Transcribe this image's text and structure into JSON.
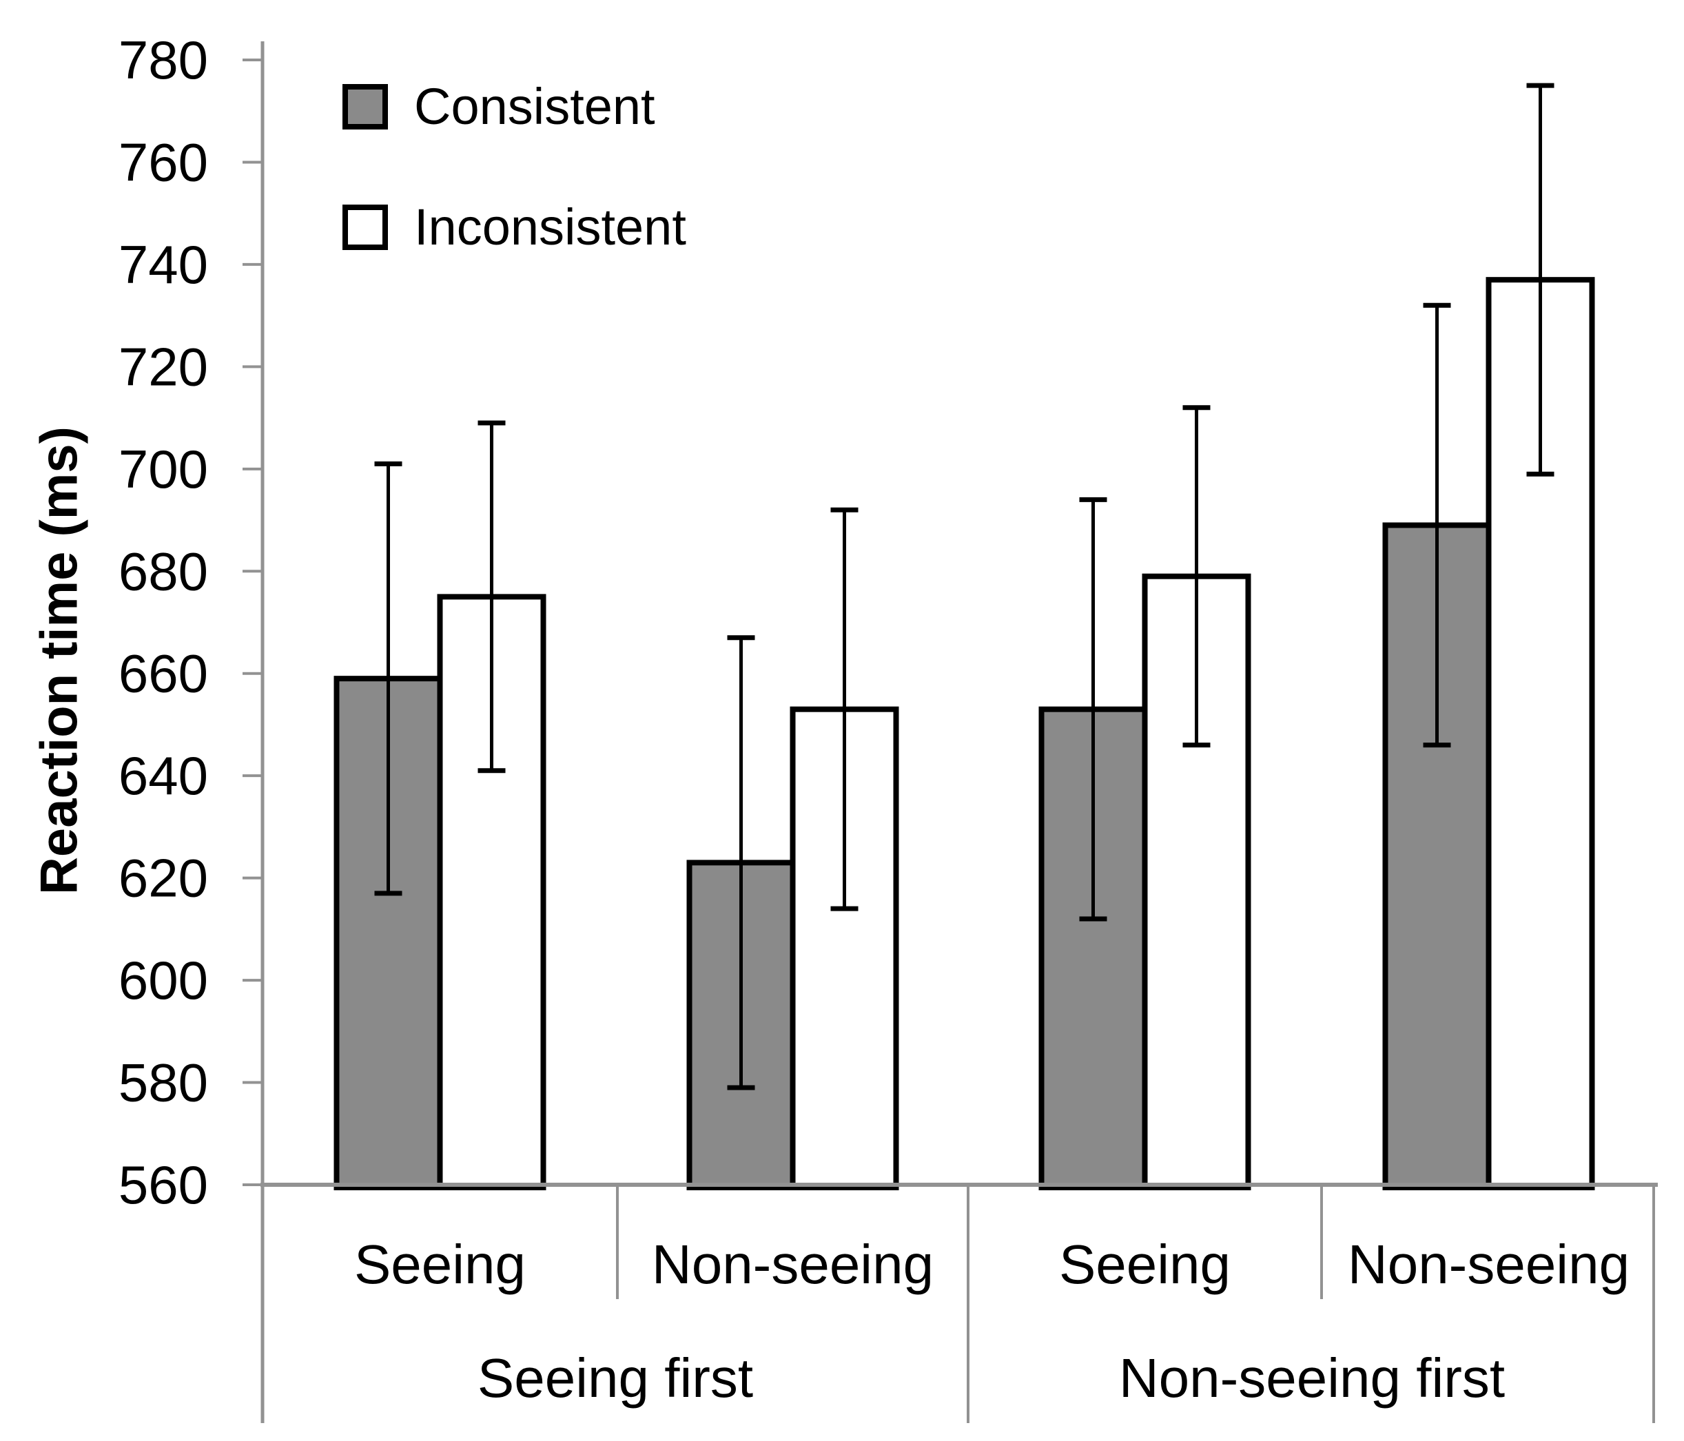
{
  "chart_data": {
    "type": "bar",
    "title": "",
    "ylabel": "Reaction time (ms)",
    "xlabel": "",
    "grid": false,
    "legend": {
      "position": "top-left-inside",
      "items": [
        "Consistent",
        "Inconsistent"
      ]
    },
    "y_axis": {
      "min": 560,
      "max": 780,
      "step": 20,
      "tick_labels": [
        "560",
        "580",
        "600",
        "620",
        "640",
        "660",
        "680",
        "700",
        "720",
        "740",
        "760",
        "780"
      ]
    },
    "groups": [
      {
        "label": "Seeing first",
        "subcategories": [
          "Seeing",
          "Non-seeing"
        ]
      },
      {
        "label": "Non-seeing first",
        "subcategories": [
          "Seeing",
          "Non-seeing"
        ]
      }
    ],
    "categories": [
      "Seeing first / Seeing",
      "Seeing first / Non-seeing",
      "Non-seeing first / Seeing",
      "Non-seeing first / Non-seeing"
    ],
    "series": [
      {
        "name": "Consistent",
        "fill": "#8A8A8A",
        "values": [
          659,
          623,
          653,
          689
        ],
        "error_bars": [
          42,
          44,
          41,
          43
        ]
      },
      {
        "name": "Inconsistent",
        "fill": "#FFFFFF",
        "values": [
          675,
          653,
          679,
          737
        ],
        "error_bars": [
          34,
          39,
          33,
          38
        ]
      }
    ],
    "colors": {
      "axis": "#929292",
      "bar_border": "#000000",
      "error_bar": "#000000",
      "text": "#000000",
      "background": "#FFFFFF"
    }
  }
}
